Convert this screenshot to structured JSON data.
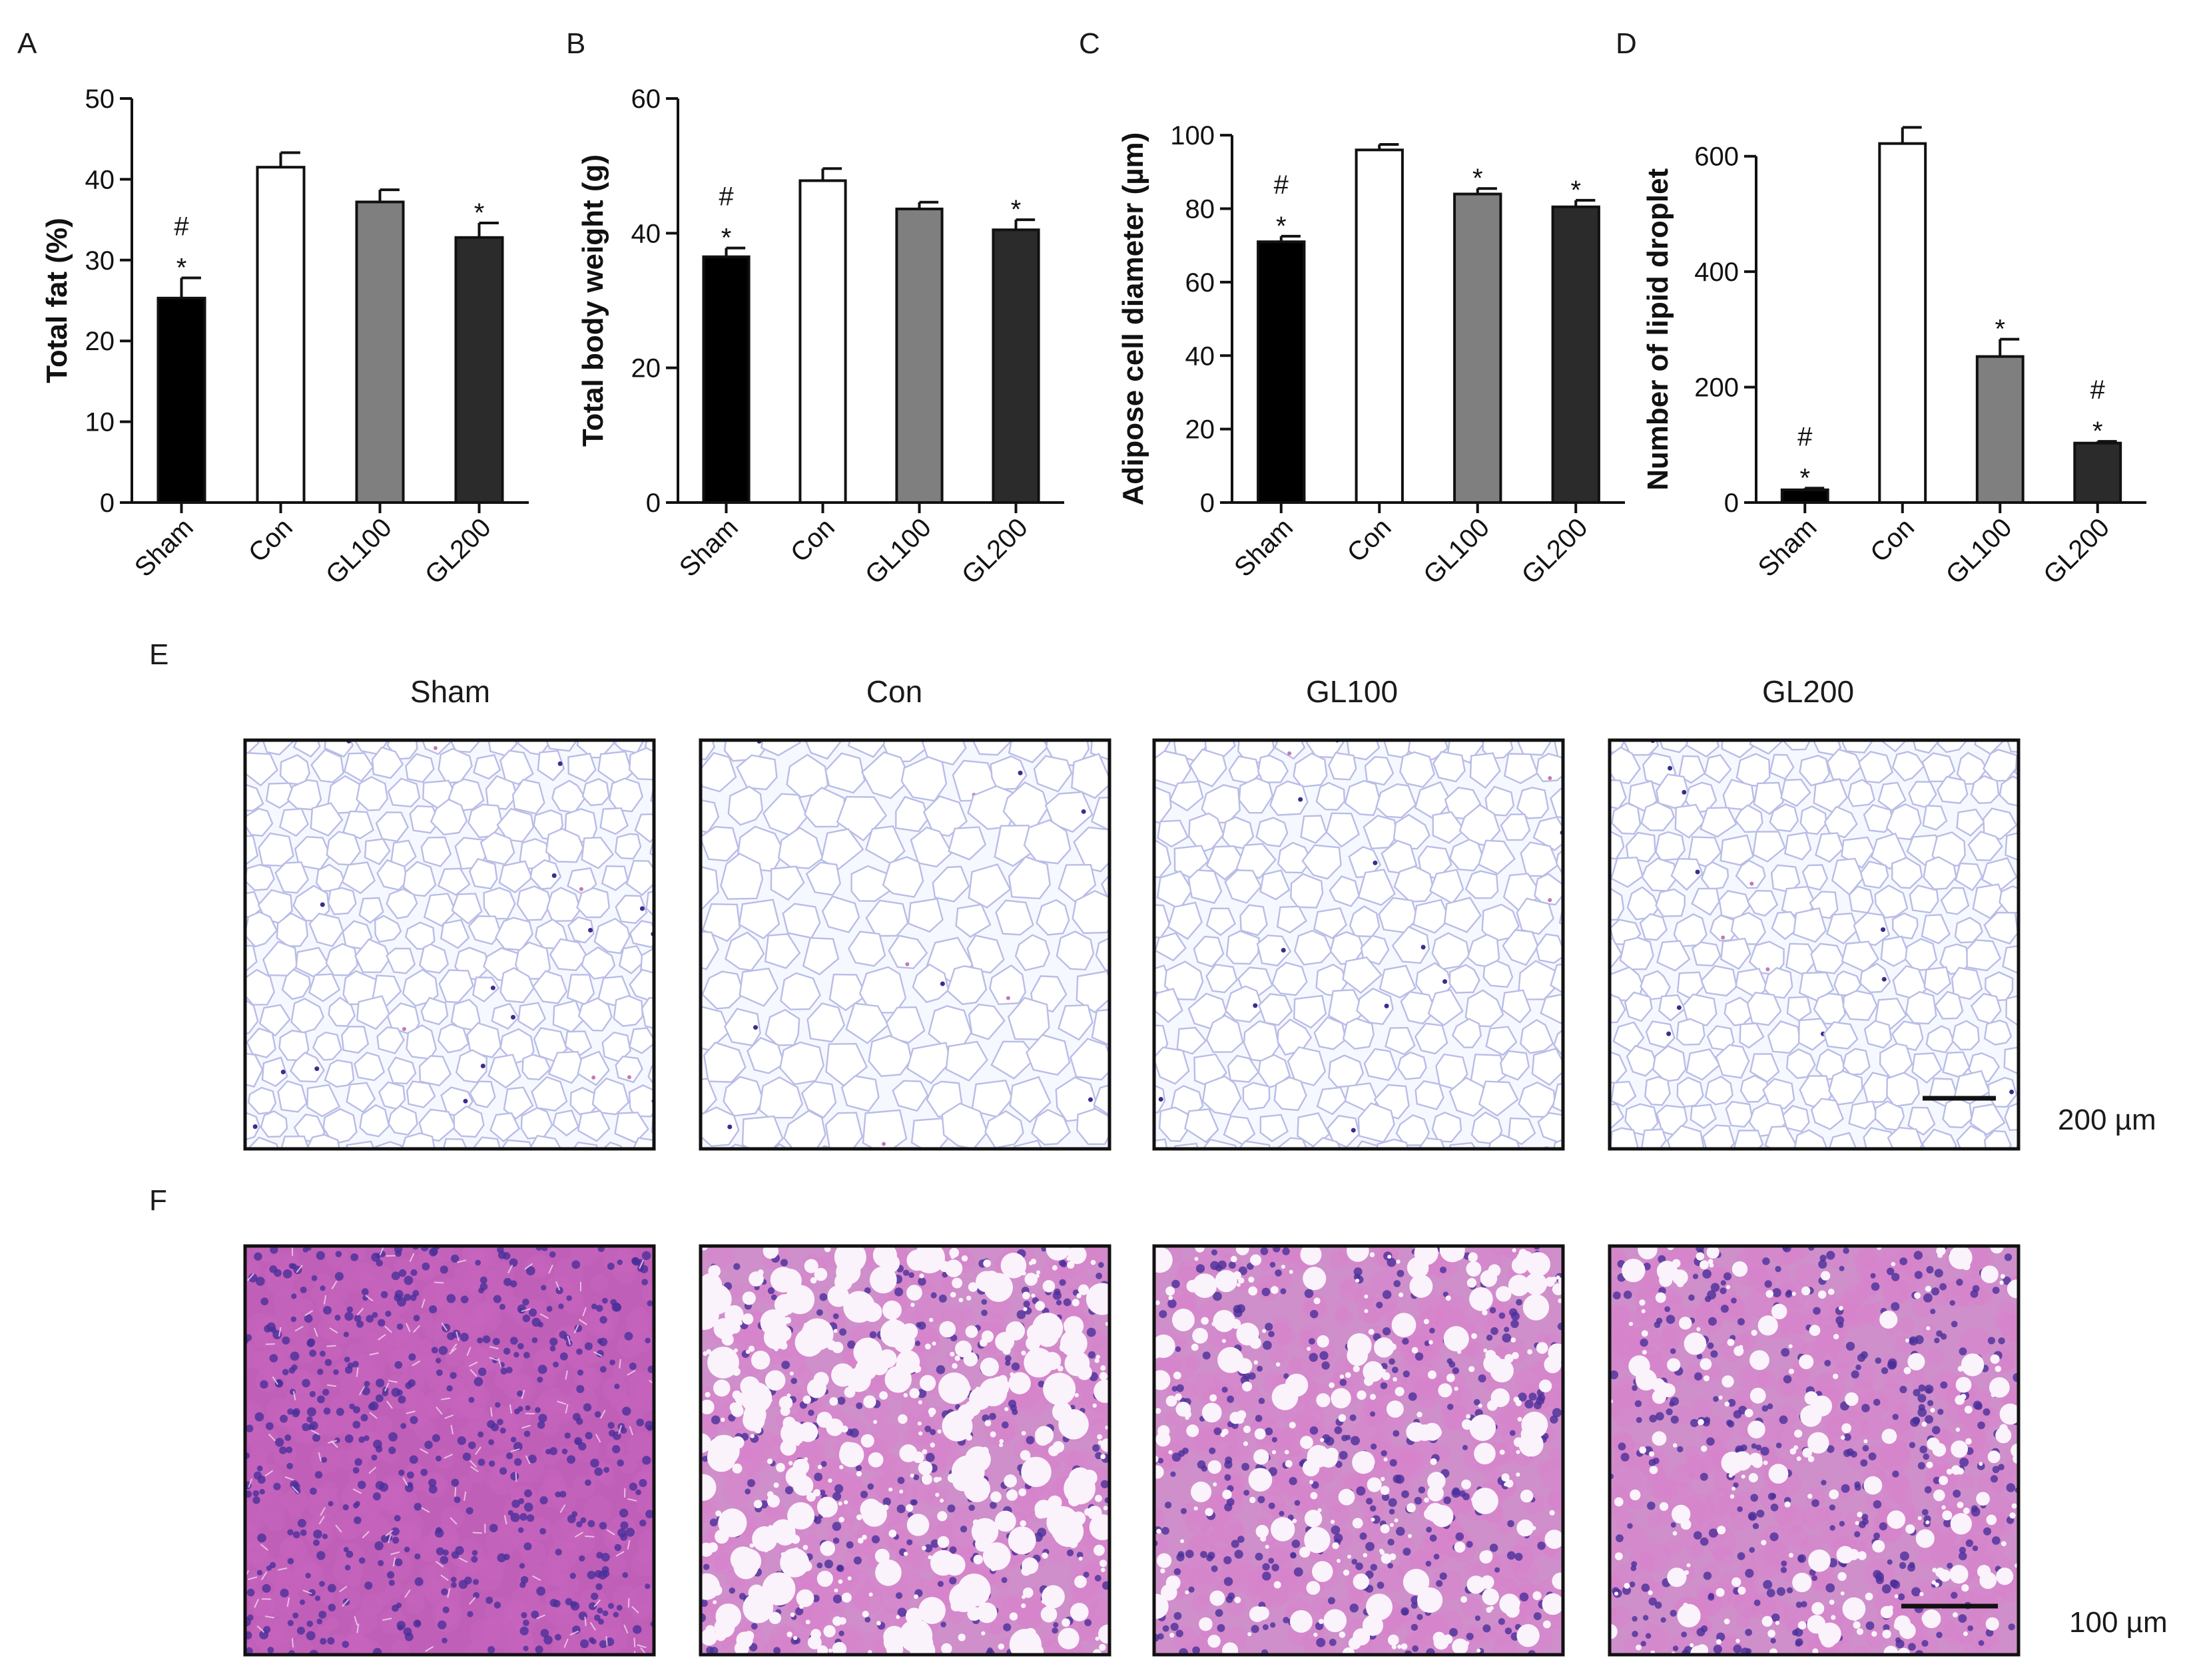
{
  "chart_data": [
    {
      "type": "bar",
      "panel": "A",
      "categories": [
        "Sham",
        "Con",
        "GL100",
        "GL200"
      ],
      "values": [
        25.3,
        41.5,
        37.2,
        32.8
      ],
      "errors": [
        2.5,
        1.8,
        1.5,
        1.8
      ],
      "colors": [
        "#000000",
        "#ffffff",
        "#7f7f7f",
        "#2b2b2b"
      ],
      "annotations": [
        "#\n*",
        "",
        "",
        "*"
      ],
      "ylabel": "Total fat (%)",
      "ylim": [
        0,
        50
      ],
      "yticks": [
        0,
        10,
        20,
        30,
        40,
        50
      ]
    },
    {
      "type": "bar",
      "panel": "B",
      "categories": [
        "Sham",
        "Con",
        "GL100",
        "GL200"
      ],
      "values": [
        36.5,
        47.8,
        43.6,
        40.5
      ],
      "errors": [
        1.3,
        1.8,
        1.0,
        1.5
      ],
      "colors": [
        "#000000",
        "#ffffff",
        "#7f7f7f",
        "#2b2b2b"
      ],
      "annotations": [
        "#\n*",
        "",
        "",
        "*"
      ],
      "ylabel": "Total body weight (g)",
      "ylim": [
        0,
        60
      ],
      "yticks": [
        0,
        20,
        40,
        60
      ]
    },
    {
      "type": "bar",
      "panel": "C",
      "categories": [
        "Sham",
        "Con",
        "GL100",
        "GL200"
      ],
      "values": [
        71,
        96,
        84,
        80.5
      ],
      "errors": [
        1.5,
        1.5,
        1.5,
        1.8
      ],
      "colors": [
        "#000000",
        "#ffffff",
        "#7f7f7f",
        "#2b2b2b"
      ],
      "annotations": [
        "#\n*",
        "",
        "*",
        "*"
      ],
      "ylabel": "Adipose cell diameter (µm)",
      "ylim": [
        0,
        110
      ],
      "yticks": [
        0,
        20,
        40,
        60,
        80,
        100
      ]
    },
    {
      "type": "bar",
      "panel": "D",
      "categories": [
        "Sham",
        "Con",
        "GL100",
        "GL200"
      ],
      "values": [
        22,
        622,
        253,
        103
      ],
      "errors": [
        3,
        28,
        30,
        3
      ],
      "colors": [
        "#000000",
        "#ffffff",
        "#7f7f7f",
        "#2b2b2b"
      ],
      "annotations": [
        "#\n*",
        "",
        "*",
        "#\n*"
      ],
      "ylabel": "Number of lipid droplet",
      "ylim": [
        0,
        700
      ],
      "yticks": [
        0,
        200,
        400,
        600
      ]
    }
  ],
  "panels": {
    "E": {
      "letter": "E",
      "columns": [
        "Sham",
        "Con",
        "GL100",
        "GL200"
      ],
      "scale_bar": "200 µm",
      "tissue_colors": {
        "background": "#f6f8ff",
        "membrane": "#b9bde6",
        "nucleus": "#3c2c8c",
        "accent": "#c27ab4"
      }
    },
    "F": {
      "letter": "F",
      "scale_bar": "100 µm",
      "tissue_colors": {
        "background": "#c05fb8",
        "cell": "#d882cc",
        "nucleus": "#4a2f9a",
        "droplet": "#fbf3fb"
      }
    }
  }
}
